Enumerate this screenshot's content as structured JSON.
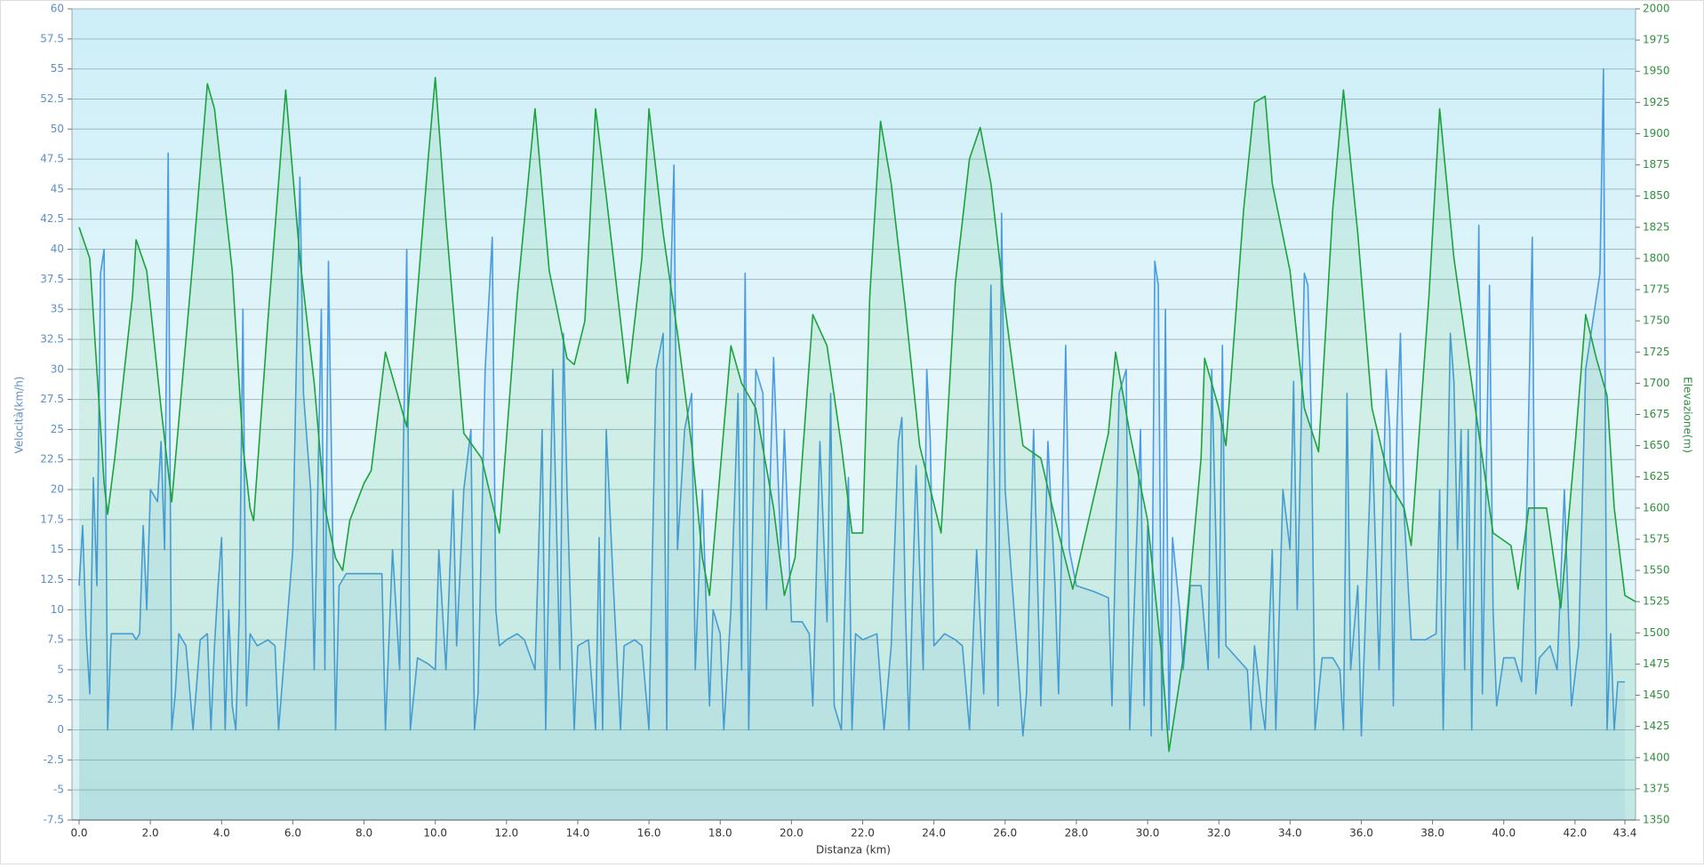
{
  "chart_data": {
    "type": "line",
    "x_label": "Distanza  (km)",
    "y_label": "Velocità(km/h)",
    "y2_label": "Elevazione(m)",
    "grid": true,
    "xlim": [
      -0.2,
      43.7
    ],
    "xticks": [
      {
        "value": 0,
        "label": "0.0"
      },
      {
        "value": 2,
        "label": "2.0"
      },
      {
        "value": 4,
        "label": "4.0"
      },
      {
        "value": 6,
        "label": "6.0"
      },
      {
        "value": 8,
        "label": "8.0"
      },
      {
        "value": 10,
        "label": "10.0"
      },
      {
        "value": 12,
        "label": "12.0"
      },
      {
        "value": 14,
        "label": "14.0"
      },
      {
        "value": 16,
        "label": "16.0"
      },
      {
        "value": 18,
        "label": "18.0"
      },
      {
        "value": 20,
        "label": "20.0"
      },
      {
        "value": 22,
        "label": "22.0"
      },
      {
        "value": 24,
        "label": "24.0"
      },
      {
        "value": 26,
        "label": "26.0"
      },
      {
        "value": 28,
        "label": "28.0"
      },
      {
        "value": 30,
        "label": "30.0"
      },
      {
        "value": 32,
        "label": "32.0"
      },
      {
        "value": 34,
        "label": "34.0"
      },
      {
        "value": 36,
        "label": "36.0"
      },
      {
        "value": 38,
        "label": "38.0"
      },
      {
        "value": 40,
        "label": "40.0"
      },
      {
        "value": 42,
        "label": "42.0"
      },
      43.4
    ],
    "ylim": [
      -7.5,
      60
    ],
    "yticks": [
      -7.5,
      -5,
      -2.5,
      0,
      2.5,
      5,
      7.5,
      10,
      12.5,
      15,
      17.5,
      20,
      22.5,
      25,
      27.5,
      30,
      32.5,
      35,
      37.5,
      40,
      42.5,
      45,
      47.5,
      50,
      52.5,
      55,
      57.5,
      60
    ],
    "y2lim": [
      1350,
      2000
    ],
    "y2ticks": [
      1350,
      1375,
      1400,
      1425,
      1450,
      1475,
      1500,
      1525,
      1550,
      1575,
      1600,
      1625,
      1650,
      1675,
      1700,
      1725,
      1750,
      1775,
      1800,
      1825,
      1850,
      1875,
      1900,
      1925,
      1950,
      1975,
      2000
    ],
    "series": [
      {
        "name": "Velocità",
        "color": "#4a9be3",
        "x": [
          0.0,
          0.1,
          0.2,
          0.3,
          0.4,
          0.5,
          0.6,
          0.7,
          0.8,
          0.9,
          1.2,
          1.5,
          1.6,
          1.7,
          1.8,
          1.9,
          2.0,
          2.2,
          2.3,
          2.4,
          2.5,
          2.6,
          2.7,
          2.8,
          3.0,
          3.2,
          3.4,
          3.6,
          3.7,
          3.8,
          3.9,
          4.0,
          4.1,
          4.2,
          4.3,
          4.4,
          4.5,
          4.6,
          4.7,
          4.8,
          5.0,
          5.3,
          5.5,
          5.6,
          5.8,
          6.0,
          6.2,
          6.3,
          6.5,
          6.6,
          6.7,
          6.8,
          6.9,
          7.0,
          7.1,
          7.2,
          7.3,
          7.5,
          8.0,
          8.5,
          8.6,
          8.8,
          9.0,
          9.2,
          9.3,
          9.5,
          9.8,
          10.0,
          10.1,
          10.3,
          10.5,
          10.6,
          10.8,
          11.0,
          11.1,
          11.2,
          11.4,
          11.6,
          11.7,
          11.8,
          12.0,
          12.3,
          12.5,
          12.8,
          13.0,
          13.1,
          13.3,
          13.5,
          13.6,
          13.7,
          13.9,
          14.0,
          14.3,
          14.5,
          14.6,
          14.7,
          14.8,
          15.0,
          15.2,
          15.3,
          15.6,
          15.8,
          16.0,
          16.2,
          16.4,
          16.5,
          16.6,
          16.7,
          16.8,
          17.0,
          17.2,
          17.3,
          17.5,
          17.7,
          17.8,
          18.0,
          18.1,
          18.3,
          18.5,
          18.6,
          18.7,
          18.8,
          19.0,
          19.2,
          19.3,
          19.5,
          19.7,
          19.8,
          20.0,
          20.3,
          20.5,
          20.6,
          20.8,
          21.0,
          21.1,
          21.2,
          21.4,
          21.6,
          21.7,
          21.8,
          22.0,
          22.4,
          22.6,
          22.8,
          23.0,
          23.1,
          23.2,
          23.3,
          23.5,
          23.7,
          23.8,
          23.9,
          24.0,
          24.3,
          24.6,
          24.8,
          25.0,
          25.2,
          25.4,
          25.6,
          25.7,
          25.8,
          25.9,
          26.0,
          26.2,
          26.4,
          26.5,
          26.6,
          26.8,
          27.0,
          27.2,
          27.4,
          27.5,
          27.7,
          27.8,
          28.0,
          28.5,
          28.9,
          29.0,
          29.2,
          29.4,
          29.5,
          29.8,
          29.9,
          30.0,
          30.1,
          30.2,
          30.3,
          30.4,
          30.5,
          30.6,
          30.7,
          30.9,
          31.0,
          31.2,
          31.5,
          31.7,
          31.8,
          32.0,
          32.1,
          32.2,
          32.5,
          32.8,
          32.9,
          33.0,
          33.2,
          33.3,
          33.5,
          33.6,
          33.8,
          34.0,
          34.1,
          34.2,
          34.4,
          34.5,
          34.6,
          34.7,
          34.9,
          35.2,
          35.4,
          35.5,
          35.6,
          35.7,
          35.9,
          36.0,
          36.3,
          36.5,
          36.7,
          36.8,
          36.9,
          37.0,
          37.1,
          37.2,
          37.4,
          37.8,
          38.1,
          38.2,
          38.3,
          38.5,
          38.6,
          38.7,
          38.8,
          38.9,
          39.0,
          39.1,
          39.3,
          39.4,
          39.6,
          39.7,
          39.8,
          40.0,
          40.3,
          40.5,
          40.6,
          40.8,
          40.9,
          41.0,
          41.3,
          41.5,
          41.7,
          41.9,
          42.1,
          42.3,
          42.5,
          42.7,
          42.8,
          42.9,
          43.0,
          43.1,
          43.2,
          43.4
        ],
        "values": [
          12,
          17,
          8,
          3,
          21,
          12,
          38,
          40,
          0,
          8,
          8,
          8,
          7.5,
          8,
          17,
          10,
          20,
          19,
          24,
          15,
          48,
          0,
          3,
          8,
          7,
          0,
          7.5,
          8,
          0,
          7,
          12,
          16,
          0,
          10,
          2,
          0,
          10,
          35,
          2,
          8,
          7,
          7.5,
          7,
          0,
          7.5,
          15,
          46,
          28,
          20,
          5,
          20,
          35,
          5,
          39,
          20,
          0,
          12,
          13,
          13,
          13,
          0,
          15,
          5,
          40,
          0,
          6,
          5.5,
          5,
          15,
          5,
          20,
          7,
          20,
          25,
          0,
          3,
          30,
          41,
          10,
          7,
          7.5,
          8,
          7.5,
          5,
          25,
          0,
          30,
          5,
          33,
          20,
          0,
          7,
          7.5,
          0,
          16,
          0,
          25,
          12,
          0,
          7,
          7.5,
          7,
          0,
          30,
          33,
          0,
          36,
          47,
          15,
          25,
          28,
          5,
          20,
          2,
          10,
          8,
          0,
          10,
          28,
          5,
          38,
          0,
          30,
          28,
          10,
          31,
          15,
          25,
          9,
          9,
          8,
          2,
          24,
          9,
          28,
          2,
          0,
          21,
          0,
          8,
          7.5,
          8,
          0,
          7,
          24,
          26,
          10,
          0,
          22,
          5,
          30,
          24,
          7,
          8,
          7.5,
          7,
          0,
          15,
          3,
          37,
          20,
          2,
          43,
          20,
          12,
          4,
          -0.5,
          3,
          25,
          2,
          24,
          12,
          3,
          32,
          15,
          12,
          11.5,
          11,
          2,
          28,
          30,
          0,
          25,
          2,
          17,
          -0.5,
          39,
          37,
          0,
          35,
          0,
          16,
          10,
          5,
          12,
          12,
          5,
          30,
          6,
          32,
          7,
          6,
          5,
          0,
          7,
          2,
          0,
          15,
          0,
          20,
          15,
          29,
          10,
          38,
          37,
          25,
          0,
          6,
          6,
          5,
          0,
          28,
          5,
          12,
          -0.5,
          25,
          5,
          30,
          25,
          2,
          25,
          33,
          18,
          7.5,
          7.5,
          8,
          20,
          0,
          33,
          29,
          15,
          25,
          5,
          25,
          0,
          42,
          3,
          37,
          10,
          2,
          6,
          6,
          4,
          12,
          41,
          3,
          6,
          7,
          5,
          20,
          2,
          7,
          30,
          34,
          38,
          55,
          0,
          8,
          0,
          4,
          4
        ]
      },
      {
        "name": "Elevazione",
        "color": "#1aa33c",
        "axis": "y2",
        "x": [
          0.0,
          0.3,
          0.7,
          0.8,
          1.0,
          1.5,
          1.6,
          1.9,
          2.3,
          2.5,
          2.6,
          3.2,
          3.6,
          3.8,
          4.3,
          4.6,
          4.8,
          4.9,
          5.3,
          5.8,
          6.2,
          6.6,
          6.9,
          7.2,
          7.4,
          7.6,
          8.0,
          8.2,
          8.6,
          9.2,
          9.8,
          10.0,
          10.3,
          10.8,
          11.3,
          11.8,
          12.3,
          12.8,
          13.2,
          13.7,
          13.9,
          14.2,
          14.5,
          14.8,
          15.2,
          15.4,
          15.8,
          16.0,
          16.4,
          16.8,
          17.2,
          17.5,
          17.7,
          18.3,
          18.6,
          19.0,
          19.5,
          19.8,
          20.1,
          20.6,
          21.0,
          21.4,
          21.7,
          22.0,
          22.2,
          22.5,
          22.8,
          23.2,
          23.6,
          24.2,
          24.6,
          25.0,
          25.3,
          25.6,
          26.0,
          26.5,
          27.0,
          27.5,
          27.9,
          28.5,
          28.9,
          29.1,
          29.5,
          30.0,
          30.4,
          30.6,
          31.0,
          31.5,
          31.6,
          32.0,
          32.2,
          32.7,
          33.0,
          33.3,
          33.5,
          34.0,
          34.4,
          34.8,
          35.2,
          35.5,
          35.9,
          36.3,
          36.8,
          37.2,
          37.4,
          37.9,
          38.2,
          38.6,
          39.2,
          39.7,
          40.2,
          40.4,
          40.7,
          41.2,
          41.6,
          42.0,
          42.3,
          42.6,
          42.9,
          43.1,
          43.4,
          43.7
        ],
        "values": [
          1825,
          1800,
          1620,
          1595,
          1640,
          1770,
          1815,
          1790,
          1680,
          1630,
          1605,
          1800,
          1940,
          1920,
          1790,
          1650,
          1600,
          1590,
          1750,
          1935,
          1800,
          1700,
          1600,
          1560,
          1550,
          1590,
          1620,
          1630,
          1725,
          1665,
          1880,
          1945,
          1830,
          1660,
          1640,
          1580,
          1770,
          1920,
          1790,
          1720,
          1715,
          1750,
          1920,
          1850,
          1750,
          1700,
          1800,
          1920,
          1820,
          1740,
          1650,
          1560,
          1530,
          1730,
          1700,
          1680,
          1600,
          1530,
          1560,
          1755,
          1730,
          1650,
          1580,
          1580,
          1770,
          1910,
          1860,
          1760,
          1650,
          1580,
          1780,
          1880,
          1905,
          1860,
          1760,
          1650,
          1640,
          1580,
          1535,
          1610,
          1660,
          1725,
          1660,
          1590,
          1480,
          1405,
          1480,
          1640,
          1720,
          1680,
          1650,
          1840,
          1925,
          1930,
          1860,
          1790,
          1680,
          1645,
          1840,
          1935,
          1820,
          1680,
          1620,
          1600,
          1570,
          1770,
          1920,
          1800,
          1680,
          1580,
          1570,
          1535,
          1600,
          1600,
          1520,
          1650,
          1755,
          1720,
          1690,
          1600,
          1530,
          1525
        ]
      }
    ]
  }
}
